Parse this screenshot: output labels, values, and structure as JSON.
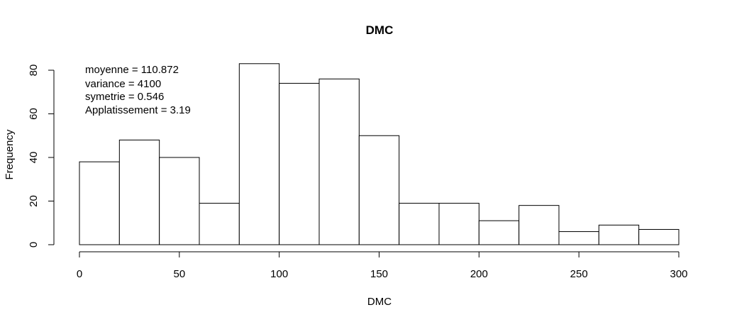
{
  "chart_data": {
    "type": "bar",
    "title": "DMC",
    "xlabel": "DMC",
    "ylabel": "Frequency",
    "xlim": [
      0,
      300
    ],
    "ylim": [
      0,
      80
    ],
    "x_ticks": [
      0,
      50,
      100,
      150,
      200,
      250,
      300
    ],
    "y_ticks": [
      0,
      20,
      40,
      60,
      80
    ],
    "bins": [
      {
        "from": 0,
        "to": 20,
        "count": 38
      },
      {
        "from": 20,
        "to": 40,
        "count": 48
      },
      {
        "from": 40,
        "to": 60,
        "count": 40
      },
      {
        "from": 60,
        "to": 80,
        "count": 19
      },
      {
        "from": 80,
        "to": 100,
        "count": 83
      },
      {
        "from": 100,
        "to": 120,
        "count": 74
      },
      {
        "from": 120,
        "to": 140,
        "count": 76
      },
      {
        "from": 140,
        "to": 160,
        "count": 50
      },
      {
        "from": 160,
        "to": 180,
        "count": 19
      },
      {
        "from": 180,
        "to": 200,
        "count": 19
      },
      {
        "from": 200,
        "to": 220,
        "count": 11
      },
      {
        "from": 220,
        "to": 240,
        "count": 18
      },
      {
        "from": 240,
        "to": 260,
        "count": 6
      },
      {
        "from": 260,
        "to": 280,
        "count": 9
      },
      {
        "from": 280,
        "to": 300,
        "count": 7
      }
    ],
    "grid": false,
    "colors": {
      "bar_fill": "#ffffff",
      "stroke": "#000000"
    },
    "annotations": [
      "moyenne = 110.872",
      "variance = 4100",
      "symetrie = 0.546",
      "Applatissement = 3.19"
    ]
  }
}
